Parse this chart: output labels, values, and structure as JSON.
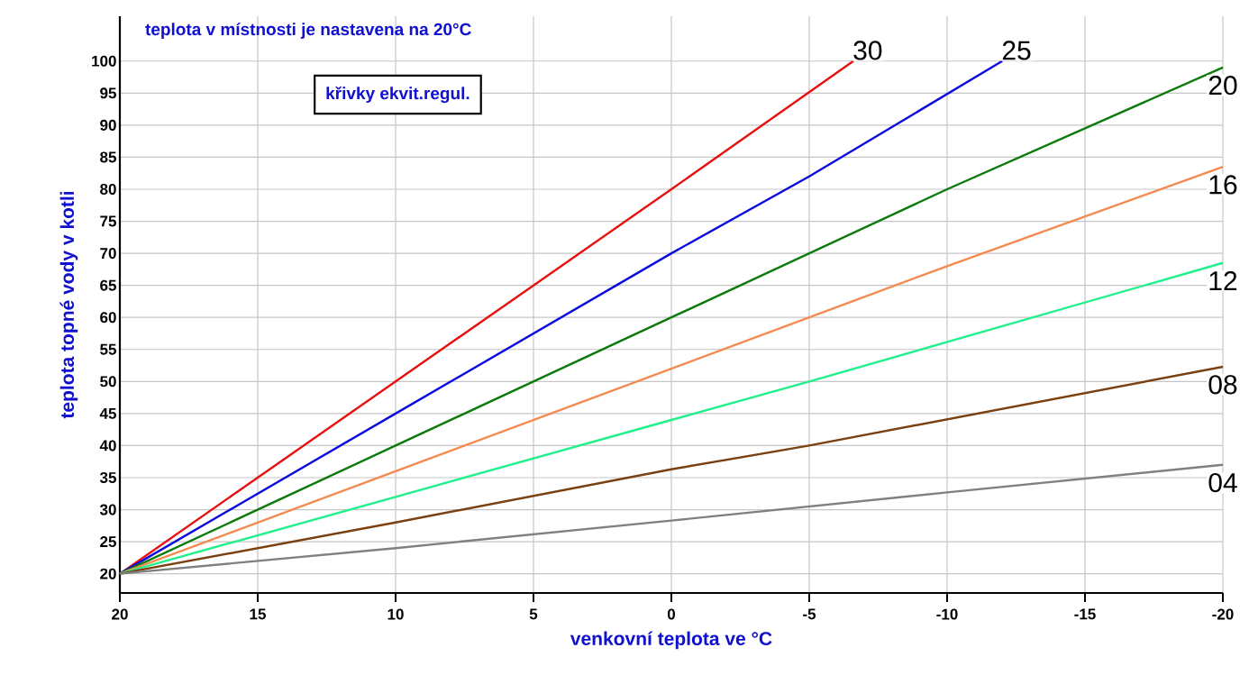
{
  "chart_data": {
    "type": "line",
    "title": "teplota v místnosti je nastavena na 20°C",
    "xlabel": "venkovní teplota ve °C",
    "ylabel": "teplota topné vody v kotli",
    "annotations": [
      "křivky ekvit.regul."
    ],
    "xlim": [
      20,
      -20
    ],
    "ylim": [
      17,
      107
    ],
    "xticks": [
      20,
      15,
      10,
      5,
      0,
      -5,
      -10,
      -15,
      -20
    ],
    "yticks": [
      20,
      25,
      30,
      35,
      40,
      45,
      50,
      55,
      60,
      65,
      70,
      75,
      80,
      85,
      90,
      95,
      100
    ],
    "grid": true,
    "series": [
      {
        "name": "30",
        "color": "#e81010",
        "x": [
          20,
          15,
          10,
          5,
          0,
          -6.6
        ],
        "values": [
          20,
          35,
          50,
          65,
          80,
          100
        ]
      },
      {
        "name": "25",
        "color": "#0a0ae0",
        "x": [
          20,
          10,
          0,
          -5,
          -12
        ],
        "values": [
          20,
          45,
          70,
          82,
          100
        ]
      },
      {
        "name": "20",
        "color": "#0a7a0a",
        "x": [
          20,
          10,
          0,
          -10,
          -20
        ],
        "values": [
          20,
          40,
          60,
          80,
          99
        ]
      },
      {
        "name": "16",
        "color": "#f58a50",
        "x": [
          20,
          10,
          0,
          -10,
          -20
        ],
        "values": [
          20,
          36,
          52,
          68,
          83.5
        ]
      },
      {
        "name": "12",
        "color": "#20f08a",
        "x": [
          20,
          10,
          0,
          -5,
          -20
        ],
        "values": [
          20,
          32,
          44,
          50,
          68.5
        ]
      },
      {
        "name": "08",
        "color": "#7a4010",
        "x": [
          20,
          10,
          0,
          -5,
          -20
        ],
        "values": [
          20,
          28,
          36.3,
          40,
          52.3
        ]
      },
      {
        "name": "04",
        "color": "#808080",
        "x": [
          20,
          10,
          0,
          -10,
          -20
        ],
        "values": [
          20,
          24,
          28.3,
          32.7,
          37
        ]
      }
    ]
  }
}
